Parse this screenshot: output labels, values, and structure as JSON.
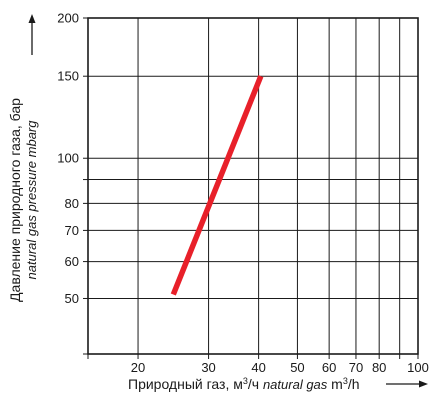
{
  "chart_data": {
    "type": "line",
    "x_scale": "log",
    "y_scale": "log",
    "xlim": [
      15,
      100
    ],
    "ylim": [
      38,
      200
    ],
    "x_ticks": [
      {
        "value": 20,
        "label": "20"
      },
      {
        "value": 30,
        "label": "30"
      },
      {
        "value": 40,
        "label": "40"
      },
      {
        "value": 50,
        "label": "50"
      },
      {
        "value": 60,
        "label": "60"
      },
      {
        "value": 70,
        "label": "70"
      },
      {
        "value": 80,
        "label": "80"
      },
      {
        "value": 90,
        "label": ""
      },
      {
        "value": 100,
        "label": "100"
      }
    ],
    "y_ticks": [
      {
        "value": 50,
        "label": "50"
      },
      {
        "value": 60,
        "label": "60"
      },
      {
        "value": 70,
        "label": "70"
      },
      {
        "value": 80,
        "label": "80"
      },
      {
        "value": 90,
        "label": ""
      },
      {
        "value": 100,
        "label": "100"
      },
      {
        "value": 150,
        "label": "150"
      },
      {
        "value": 200,
        "label": "200"
      }
    ],
    "grid": true,
    "xlabel": {
      "main": "Природный газ, м",
      "sup1": "3",
      "mid": "/ч ",
      "italic": "natural gas",
      "unit": " m",
      "sup2": "3",
      "tail": "/h"
    },
    "ylabel": {
      "main": "Давление природного газа, бар",
      "italic": "natural gas pressure mbarg"
    },
    "series": [
      {
        "color": "#e8202a",
        "x": [
          24.5,
          40.5
        ],
        "y": [
          51,
          150
        ]
      }
    ]
  }
}
